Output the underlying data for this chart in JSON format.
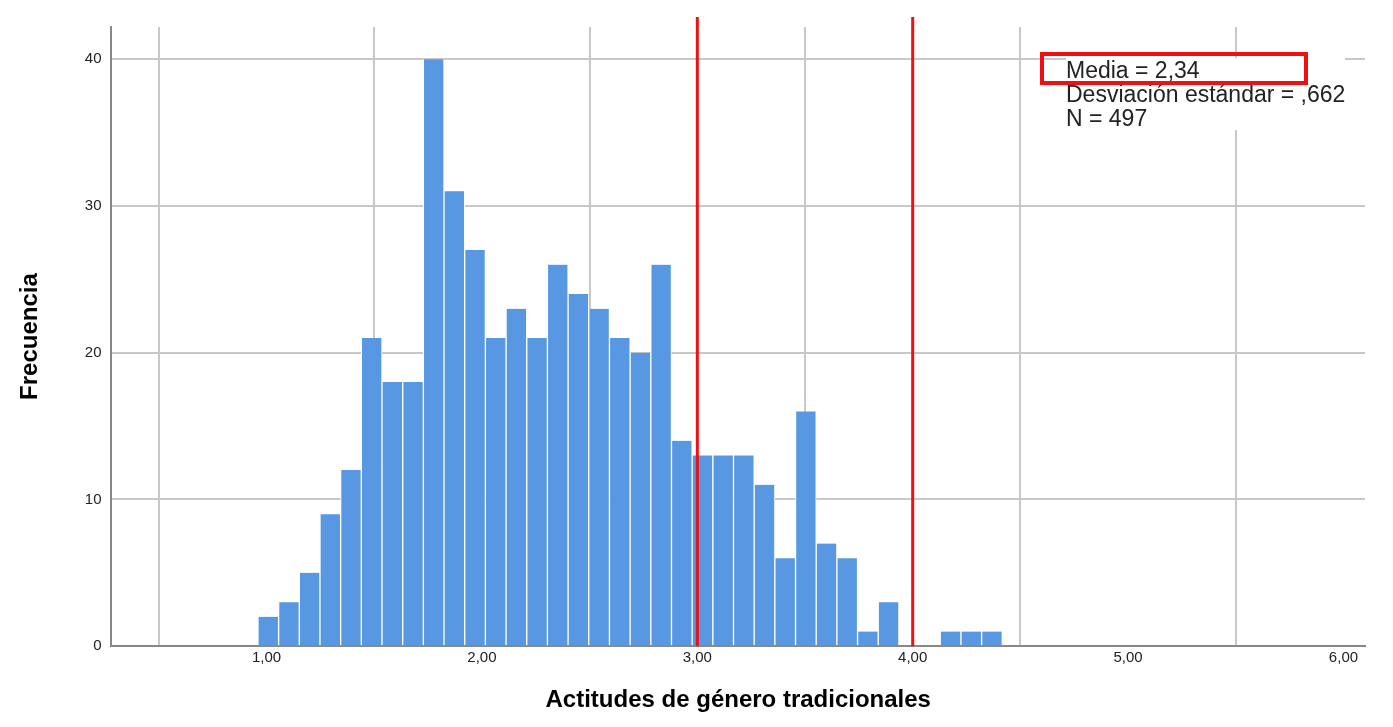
{
  "chart_data": {
    "type": "histogram",
    "xlabel": "Actitudes de género tradicionales",
    "ylabel": "Frecuencia",
    "bins": [
      0.96,
      1.056,
      1.152,
      1.248,
      1.344,
      1.44,
      1.536,
      1.632,
      1.728,
      1.824,
      1.92,
      2.016,
      2.112,
      2.208,
      2.304,
      2.4,
      2.496,
      2.592,
      2.688,
      2.784,
      2.88,
      2.976,
      3.072,
      3.168,
      3.264,
      3.36,
      3.456,
      3.552,
      3.648,
      3.744,
      3.84,
      3.936,
      4.032,
      4.128,
      4.224,
      4.32,
      4.416
    ],
    "values": [
      2,
      3,
      5,
      9,
      12,
      21,
      18,
      18,
      40,
      31,
      27,
      21,
      23,
      21,
      26,
      24,
      23,
      21,
      20,
      26,
      14,
      13,
      13,
      13,
      11,
      6,
      16,
      7,
      6,
      1,
      3,
      0,
      0,
      1,
      1,
      1
    ],
    "color": "#5898e3",
    "xlim": [
      0.28,
      6.1
    ],
    "xticks": [
      {
        "value": 1,
        "label": "1,00"
      },
      {
        "value": 2,
        "label": "2,00"
      },
      {
        "value": 3,
        "label": "3,00"
      },
      {
        "value": 4,
        "label": "4,00"
      },
      {
        "value": 5,
        "label": "5,00"
      },
      {
        "value": 6,
        "label": "6,00"
      }
    ],
    "ylim": [
      0,
      42.2
    ],
    "yticks": [
      0,
      10,
      20,
      30,
      40
    ],
    "grid": true,
    "ref_lines": [
      {
        "axis": "x",
        "value": 3,
        "color": "#ee1111"
      },
      {
        "axis": "x",
        "value": 4,
        "color": "#ee1111"
      }
    ],
    "annotations": [
      "Media = 2,34",
      "Desviación estándar = ,662",
      "N = 497"
    ]
  }
}
